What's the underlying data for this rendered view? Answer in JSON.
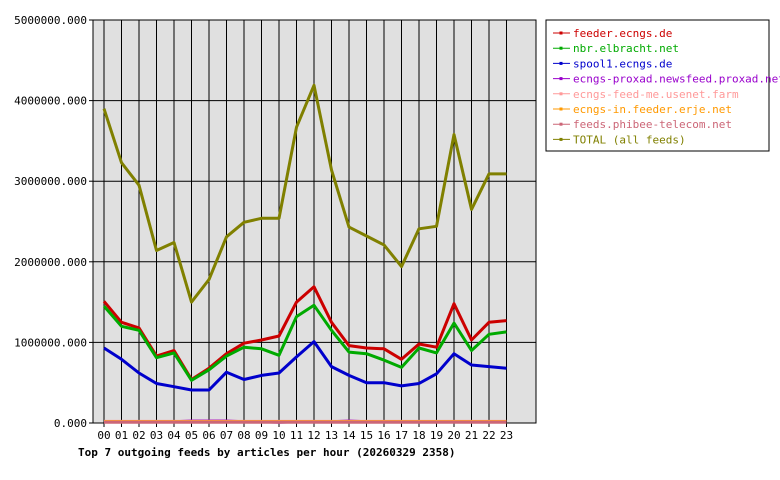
{
  "chart_data": {
    "type": "line",
    "title": "Top 7 outgoing feeds by articles per hour (20260329 2358)",
    "xlabel": "",
    "ylabel": "",
    "ylim": [
      0,
      5000000
    ],
    "yticks": [
      0,
      1000000,
      2000000,
      3000000,
      4000000,
      5000000
    ],
    "ytick_labels": [
      "0.000",
      "1000000.000",
      "2000000.000",
      "3000000.000",
      "4000000.000",
      "5000000.000"
    ],
    "categories": [
      "00",
      "01",
      "02",
      "03",
      "04",
      "05",
      "06",
      "07",
      "08",
      "09",
      "10",
      "11",
      "12",
      "13",
      "14",
      "15",
      "16",
      "17",
      "18",
      "19",
      "20",
      "21",
      "22",
      "23"
    ],
    "grid": true,
    "legend_position": "right",
    "series": [
      {
        "name": "feeder.ecngs.de",
        "color": "#cc0000",
        "values": [
          1510000,
          1250000,
          1180000,
          830000,
          900000,
          540000,
          680000,
          860000,
          990000,
          1030000,
          1080000,
          1500000,
          1690000,
          1250000,
          960000,
          930000,
          920000,
          790000,
          980000,
          940000,
          1480000,
          1030000,
          1250000,
          1270000
        ]
      },
      {
        "name": "nbr.elbracht.net",
        "color": "#00aa00",
        "values": [
          1450000,
          1200000,
          1150000,
          810000,
          870000,
          530000,
          660000,
          830000,
          940000,
          920000,
          840000,
          1320000,
          1460000,
          1150000,
          880000,
          860000,
          780000,
          690000,
          930000,
          870000,
          1240000,
          900000,
          1100000,
          1130000
        ]
      },
      {
        "name": "spool1.ecngs.de",
        "color": "#0000cc",
        "values": [
          930000,
          790000,
          620000,
          490000,
          450000,
          410000,
          410000,
          630000,
          540000,
          590000,
          620000,
          820000,
          1010000,
          700000,
          590000,
          500000,
          500000,
          460000,
          490000,
          610000,
          860000,
          720000,
          700000,
          680000
        ]
      },
      {
        "name": "ecngs-proxad.newsfeed.proxad.net",
        "color": "#9900cc",
        "values": [
          15000,
          15000,
          15000,
          15000,
          15000,
          25000,
          25000,
          25000,
          15000,
          15000,
          10000,
          15000,
          15000,
          15000,
          25000,
          15000,
          15000,
          15000,
          15000,
          15000,
          15000,
          15000,
          15000,
          15000
        ]
      },
      {
        "name": "ecngs-feed-me.usenet.farm",
        "color": "#ff9999",
        "values": [
          20000,
          20000,
          20000,
          20000,
          20000,
          20000,
          20000,
          20000,
          20000,
          20000,
          20000,
          20000,
          20000,
          20000,
          20000,
          20000,
          20000,
          20000,
          20000,
          20000,
          20000,
          20000,
          20000,
          20000
        ]
      },
      {
        "name": "ecngs-in.feeder.erje.net",
        "color": "#ff9900",
        "values": [
          15000,
          15000,
          15000,
          15000,
          15000,
          15000,
          15000,
          15000,
          15000,
          15000,
          15000,
          15000,
          15000,
          15000,
          15000,
          15000,
          15000,
          15000,
          15000,
          15000,
          15000,
          15000,
          15000,
          15000
        ]
      },
      {
        "name": "feeds.phibee-telecom.net",
        "color": "#cc6677",
        "values": [
          10000,
          10000,
          10000,
          10000,
          10000,
          10000,
          10000,
          10000,
          10000,
          10000,
          10000,
          10000,
          10000,
          10000,
          10000,
          10000,
          10000,
          10000,
          10000,
          10000,
          10000,
          10000,
          10000,
          10000
        ]
      },
      {
        "name": "TOTAL (all feeds)",
        "color": "#808000",
        "values": [
          3900000,
          3230000,
          2950000,
          2140000,
          2240000,
          1500000,
          1780000,
          2310000,
          2490000,
          2540000,
          2540000,
          3670000,
          4190000,
          3140000,
          2430000,
          2320000,
          2210000,
          1940000,
          2410000,
          2440000,
          3580000,
          2650000,
          3090000,
          3090000
        ]
      }
    ]
  }
}
